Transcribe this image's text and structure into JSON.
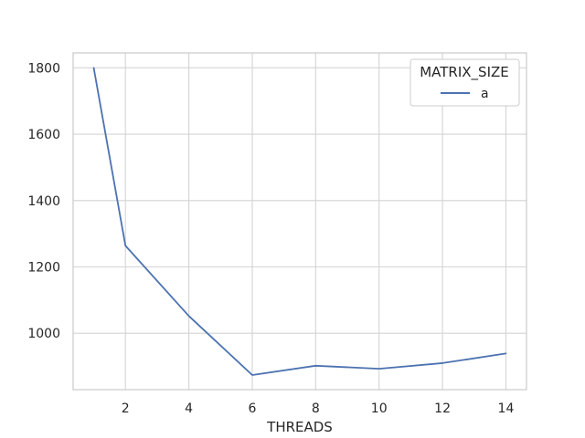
{
  "chart_data": {
    "type": "line",
    "title": "",
    "xlabel": "THREADS",
    "ylabel": "",
    "xlim": [
      0.35,
      14.65
    ],
    "ylim": [
      830,
      1845
    ],
    "xticks": [
      2,
      4,
      6,
      8,
      10,
      12,
      14
    ],
    "yticks": [
      1000,
      1200,
      1400,
      1600,
      1800
    ],
    "grid": true,
    "legend": {
      "title": "MATRIX_SIZE",
      "placement": "top-right"
    },
    "series": [
      {
        "name": "a",
        "color": "#4c72b0",
        "x": [
          1,
          2,
          4,
          6,
          8,
          10,
          12,
          14
        ],
        "y": [
          1800,
          1264,
          1052,
          874,
          902,
          893,
          910,
          939
        ]
      }
    ]
  }
}
